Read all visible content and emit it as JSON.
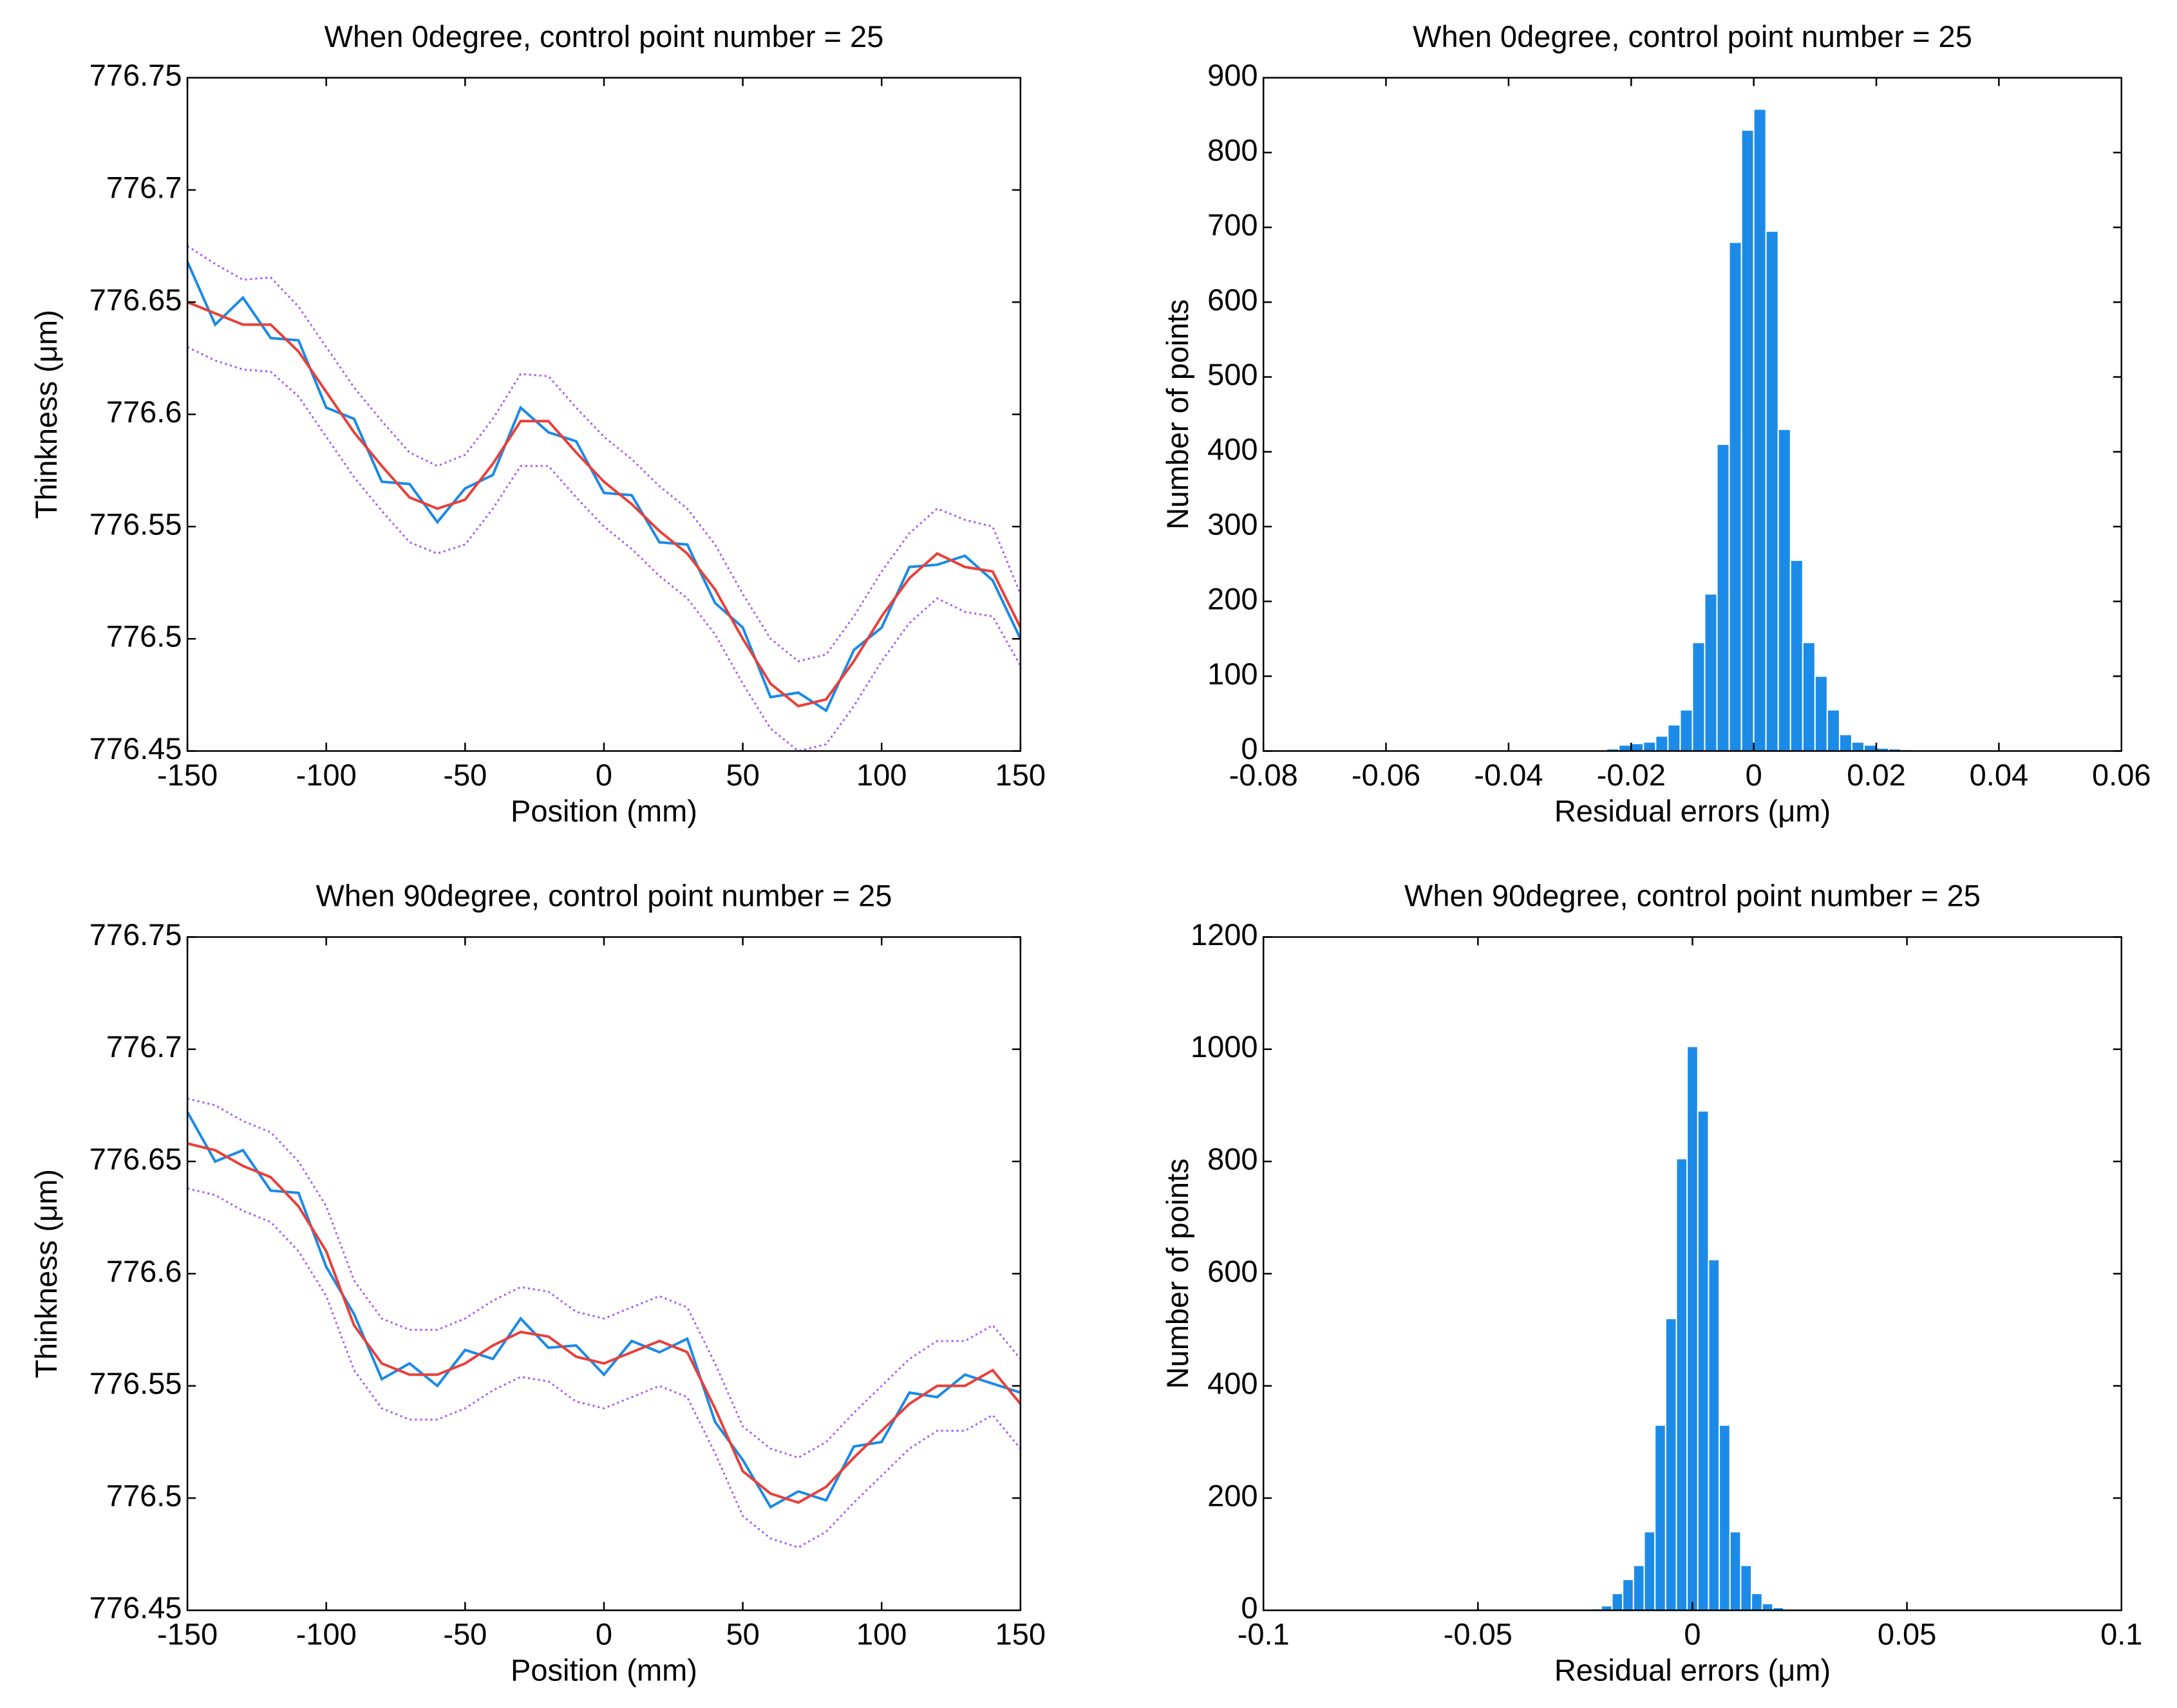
{
  "chart_data": [
    {
      "type": "line",
      "title": "When 0degree, control point number = 25",
      "xlabel": "Position (mm)",
      "ylabel": "Thinkness (μm)",
      "x": [
        -150,
        -140,
        -130,
        -120,
        -110,
        -100,
        -90,
        -80,
        -70,
        -60,
        -50,
        -40,
        -30,
        -20,
        -10,
        0,
        10,
        20,
        30,
        40,
        50,
        60,
        70,
        80,
        90,
        100,
        110,
        120,
        130,
        140,
        150
      ],
      "series": [
        {
          "color": "#1a8ae6",
          "linestyle": "solid",
          "values": [
            776.668,
            776.64,
            776.652,
            776.634,
            776.633,
            776.603,
            776.598,
            776.57,
            776.569,
            776.552,
            776.567,
            776.573,
            776.603,
            776.592,
            776.588,
            776.565,
            776.564,
            776.543,
            776.542,
            776.516,
            776.505,
            776.474,
            776.476,
            776.468,
            776.495,
            776.505,
            776.532,
            776.533,
            776.537,
            776.526,
            776.5
          ]
        },
        {
          "color": "#a855f7",
          "linestyle": "dotted",
          "values": [
            776.675,
            776.667,
            776.66,
            776.661,
            776.648,
            776.63,
            776.612,
            776.597,
            776.583,
            776.577,
            776.582,
            776.598,
            776.618,
            776.617,
            776.603,
            776.59,
            776.58,
            776.568,
            776.558,
            776.542,
            776.52,
            776.5,
            776.49,
            776.493,
            776.51,
            776.53,
            776.547,
            776.558,
            776.553,
            776.55,
            776.52
          ]
        },
        {
          "color": "#a855f7",
          "linestyle": "dotted",
          "values": [
            776.63,
            776.624,
            776.62,
            776.619,
            776.608,
            776.59,
            776.572,
            776.557,
            776.543,
            776.538,
            776.542,
            776.558,
            776.577,
            776.577,
            776.563,
            776.55,
            776.54,
            776.528,
            776.518,
            776.502,
            776.48,
            776.46,
            776.45,
            776.453,
            776.47,
            776.49,
            776.507,
            776.518,
            776.512,
            776.51,
            776.488
          ]
        },
        {
          "color": "#e8403a",
          "linestyle": "solid",
          "values": [
            776.65,
            776.645,
            776.64,
            776.64,
            776.628,
            776.61,
            776.592,
            776.577,
            776.563,
            776.558,
            776.562,
            776.578,
            776.597,
            776.597,
            776.583,
            776.57,
            776.56,
            776.548,
            776.538,
            776.522,
            776.5,
            776.48,
            776.47,
            776.473,
            776.49,
            776.51,
            776.527,
            776.538,
            776.532,
            776.53,
            776.505
          ]
        }
      ],
      "xlim": [
        -150,
        150
      ],
      "xticks": [
        -150,
        -100,
        -50,
        0,
        50,
        100,
        150
      ],
      "ylim": [
        776.45,
        776.75
      ],
      "yticks": [
        776.45,
        776.5,
        776.55,
        776.6,
        776.65,
        776.7,
        776.75
      ]
    },
    {
      "type": "histogram",
      "title": "When 0degree, control point number = 25",
      "xlabel": "Residual errors (μm)",
      "ylabel": "Number of points",
      "color": "#1c8be8",
      "bins": [
        -0.024,
        -0.022,
        -0.02,
        -0.018,
        -0.016,
        -0.014,
        -0.012,
        -0.01,
        -0.008,
        -0.006,
        -0.004,
        -0.002,
        0,
        0.002,
        0.004,
        0.006,
        0.008,
        0.01,
        0.012,
        0.014,
        0.016,
        0.018,
        0.02,
        0.022,
        0.024,
        0.026
      ],
      "counts": [
        3,
        8,
        10,
        12,
        20,
        35,
        55,
        145,
        210,
        410,
        680,
        830,
        858,
        695,
        430,
        255,
        145,
        100,
        55,
        22,
        12,
        8,
        4,
        3,
        2
      ],
      "xlim": [
        -0.08,
        0.06
      ],
      "xticks": [
        -0.08,
        -0.06,
        -0.04,
        -0.02,
        0,
        0.02,
        0.04,
        0.06
      ],
      "ylim": [
        0,
        900
      ],
      "yticks": [
        0,
        100,
        200,
        300,
        400,
        500,
        600,
        700,
        800,
        900
      ]
    },
    {
      "type": "line",
      "title": "When 90degree, control point number = 25",
      "xlabel": "Position (mm)",
      "ylabel": "Thinkness (μm)",
      "x": [
        -150,
        -140,
        -130,
        -120,
        -110,
        -100,
        -90,
        -80,
        -70,
        -60,
        -50,
        -40,
        -30,
        -20,
        -10,
        0,
        10,
        20,
        30,
        40,
        50,
        60,
        70,
        80,
        90,
        100,
        110,
        120,
        130,
        140,
        150
      ],
      "series": [
        {
          "color": "#1a8ae6",
          "linestyle": "solid",
          "values": [
            776.672,
            776.65,
            776.655,
            776.637,
            776.636,
            776.603,
            776.582,
            776.553,
            776.56,
            776.55,
            776.566,
            776.562,
            776.58,
            776.567,
            776.568,
            776.555,
            776.57,
            776.565,
            776.571,
            776.534,
            776.517,
            776.496,
            776.503,
            776.499,
            776.523,
            776.525,
            776.547,
            776.545,
            776.555,
            776.551,
            776.547
          ]
        },
        {
          "color": "#a855f7",
          "linestyle": "dotted",
          "values": [
            776.678,
            776.675,
            776.668,
            776.663,
            776.65,
            776.63,
            776.597,
            776.58,
            776.575,
            776.575,
            776.58,
            776.588,
            776.594,
            776.592,
            776.583,
            776.58,
            776.585,
            776.59,
            776.585,
            776.56,
            776.532,
            776.522,
            776.518,
            776.525,
            776.538,
            776.55,
            776.562,
            776.57,
            776.57,
            776.577,
            776.562
          ]
        },
        {
          "color": "#a855f7",
          "linestyle": "dotted",
          "values": [
            776.638,
            776.635,
            776.628,
            776.623,
            776.61,
            776.59,
            776.557,
            776.54,
            776.535,
            776.535,
            776.54,
            776.548,
            776.554,
            776.552,
            776.543,
            776.54,
            776.545,
            776.55,
            776.545,
            776.52,
            776.492,
            776.482,
            776.478,
            776.485,
            776.498,
            776.51,
            776.522,
            776.53,
            776.53,
            776.537,
            776.522
          ]
        },
        {
          "color": "#e8403a",
          "linestyle": "solid",
          "values": [
            776.658,
            776.655,
            776.648,
            776.643,
            776.63,
            776.61,
            776.577,
            776.56,
            776.555,
            776.555,
            776.56,
            776.568,
            776.574,
            776.572,
            776.563,
            776.56,
            776.565,
            776.57,
            776.565,
            776.54,
            776.512,
            776.502,
            776.498,
            776.505,
            776.518,
            776.53,
            776.542,
            776.55,
            776.55,
            776.557,
            776.542
          ]
        }
      ],
      "xlim": [
        -150,
        150
      ],
      "xticks": [
        -150,
        -100,
        -50,
        0,
        50,
        100,
        150
      ],
      "ylim": [
        776.45,
        776.75
      ],
      "yticks": [
        776.45,
        776.5,
        776.55,
        776.6,
        776.65,
        776.7,
        776.75
      ]
    },
    {
      "type": "histogram",
      "title": "When 90degree, control point number = 25",
      "xlabel": "Residual errors (μm)",
      "ylabel": "Number of points",
      "color": "#1c8be8",
      "bins": [
        -0.02375,
        -0.02125,
        -0.01875,
        -0.01625,
        -0.01375,
        -0.01125,
        -0.00875,
        -0.00625,
        -0.00375,
        -0.00125,
        0.00125,
        0.00375,
        0.00625,
        0.00875,
        0.01125,
        0.01375,
        0.01625,
        0.01875,
        0.02125
      ],
      "counts": [
        3,
        8,
        30,
        55,
        80,
        140,
        330,
        520,
        805,
        1005,
        890,
        625,
        330,
        140,
        80,
        30,
        12,
        5
      ],
      "xlim": [
        -0.1,
        0.1
      ],
      "xticks": [
        -0.1,
        -0.05,
        0,
        0.05,
        0.1
      ],
      "ylim": [
        0,
        1200
      ],
      "yticks": [
        0,
        200,
        400,
        600,
        800,
        1000,
        1200
      ]
    }
  ]
}
